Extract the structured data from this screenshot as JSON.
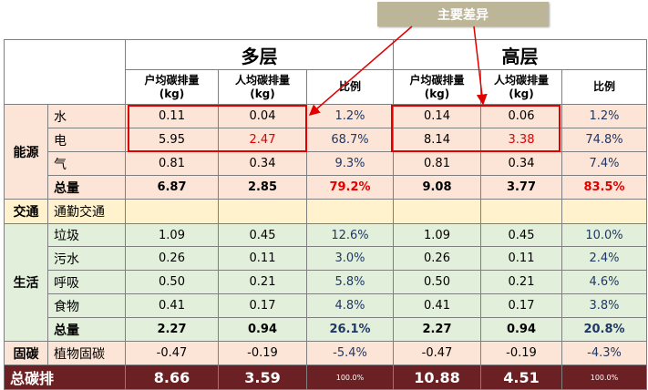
{
  "callout": "主要差异",
  "header": {
    "group1": "多层",
    "group2": "高层",
    "col_household": "户均碳排量",
    "col_person": "人均碳排量",
    "unit": "(kg)",
    "col_ratio": "比例"
  },
  "energy": {
    "label": "能源",
    "rows": [
      {
        "name": "水",
        "v": [
          "0.11",
          "0.04",
          "1.2%",
          "0.14",
          "0.06",
          "1.2%"
        ]
      },
      {
        "name": "电",
        "v": [
          "5.95",
          "2.47",
          "68.7%",
          "8.14",
          "3.38",
          "74.8%"
        ]
      },
      {
        "name": "气",
        "v": [
          "0.81",
          "0.34",
          "9.3%",
          "0.81",
          "0.34",
          "7.4%"
        ]
      }
    ],
    "total": {
      "name": "总量",
      "v": [
        "6.87",
        "2.85",
        "79.2%",
        "9.08",
        "3.77",
        "83.5%"
      ]
    }
  },
  "traffic": {
    "label": "交通",
    "row": "通勤交通"
  },
  "life": {
    "label": "生活",
    "rows": [
      {
        "name": "垃圾",
        "v": [
          "1.09",
          "0.45",
          "12.6%",
          "1.09",
          "0.45",
          "10.0%"
        ]
      },
      {
        "name": "污水",
        "v": [
          "0.26",
          "0.11",
          "3.0%",
          "0.26",
          "0.11",
          "2.4%"
        ]
      },
      {
        "name": "呼吸",
        "v": [
          "0.50",
          "0.21",
          "5.8%",
          "0.50",
          "0.21",
          "4.6%"
        ]
      },
      {
        "name": "食物",
        "v": [
          "0.41",
          "0.17",
          "4.8%",
          "0.41",
          "0.17",
          "3.8%"
        ]
      }
    ],
    "total": {
      "name": "总量",
      "v": [
        "2.27",
        "0.94",
        "26.1%",
        "2.27",
        "0.94",
        "20.8%"
      ]
    }
  },
  "sink": {
    "label": "固碳",
    "row": {
      "name": "植物固碳",
      "v": [
        "-0.47",
        "-0.19",
        "-5.4%",
        "-0.47",
        "-0.19",
        "-4.3%"
      ]
    }
  },
  "grand": {
    "label": "总碳排",
    "v": [
      "8.66",
      "3.59",
      "100.0%",
      "10.88",
      "4.51",
      "100.0%"
    ]
  },
  "colors": {
    "energy_bg": "#fce4d6",
    "traffic_bg": "#fff2cc",
    "life_bg": "#e2efda",
    "sink_bg": "#fce4d6",
    "grand_bg": "#6b2123",
    "highlight": "#e00000",
    "callout_bg": "#bdb597"
  }
}
